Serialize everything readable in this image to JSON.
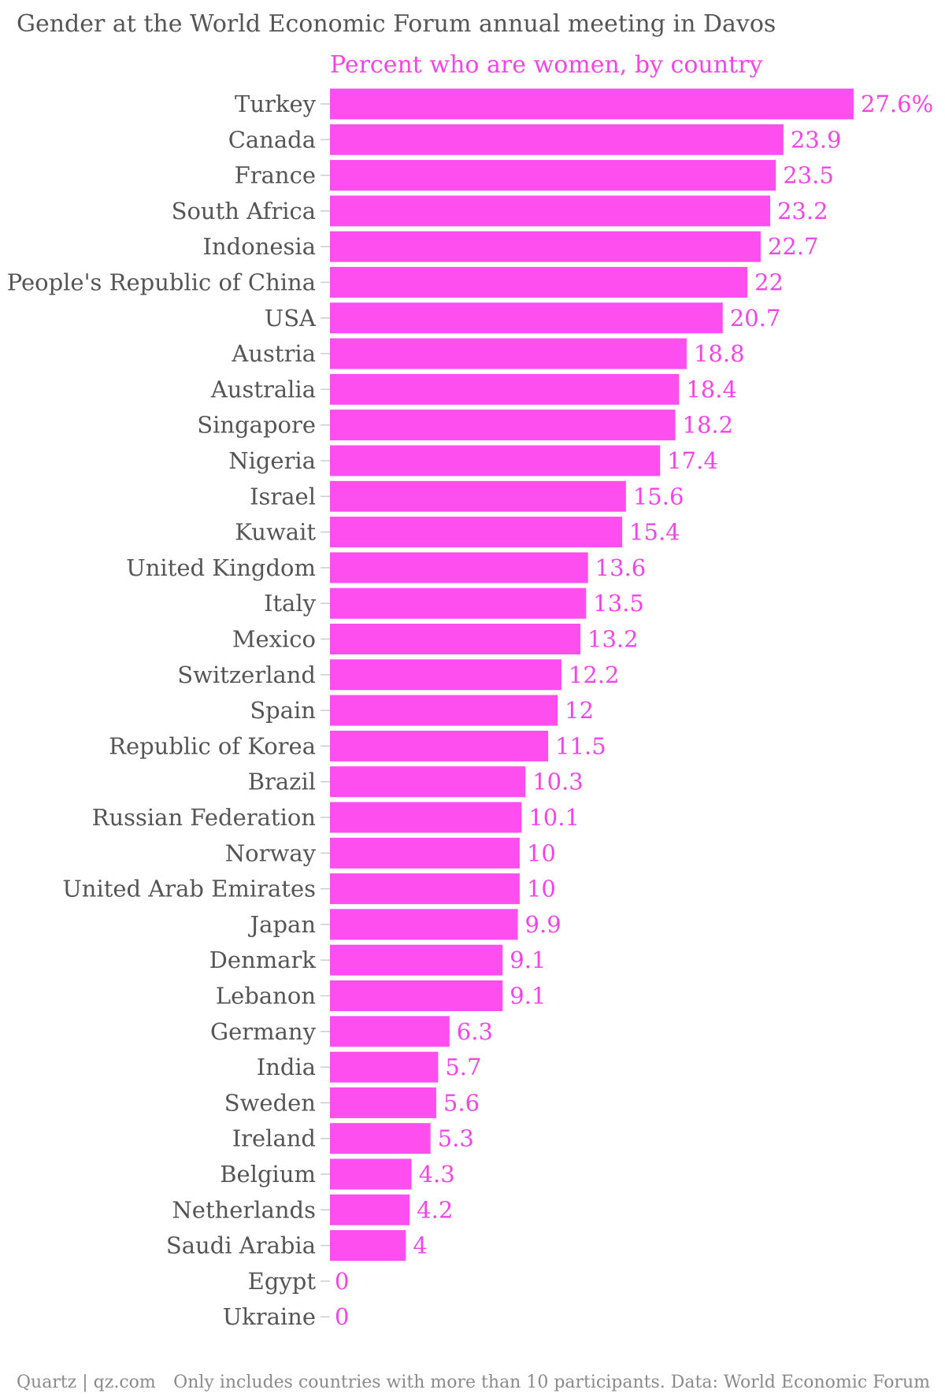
{
  "chart_data": {
    "type": "bar",
    "orientation": "horizontal",
    "title": "Gender at the World Economic Forum annual meeting in Davos",
    "subtitle": "Percent who are women, by country",
    "categories": [
      "Turkey",
      "Canada",
      "France",
      "South Africa",
      "Indonesia",
      "People's Republic of China",
      "USA",
      "Austria",
      "Australia",
      "Singapore",
      "Nigeria",
      "Israel",
      "Kuwait",
      "United Kingdom",
      "Italy",
      "Mexico",
      "Switzerland",
      "Spain",
      "Republic of Korea",
      "Brazil",
      "Russian Federation",
      "Norway",
      "United Arab Emirates",
      "Japan",
      "Denmark",
      "Lebanon",
      "Germany",
      "India",
      "Sweden",
      "Ireland",
      "Belgium",
      "Netherlands",
      "Saudi Arabia",
      "Egypt",
      "Ukraine"
    ],
    "values": [
      27.6,
      23.9,
      23.5,
      23.2,
      22.7,
      22,
      20.7,
      18.8,
      18.4,
      18.2,
      17.4,
      15.6,
      15.4,
      13.6,
      13.5,
      13.2,
      12.2,
      12,
      11.5,
      10.3,
      10.1,
      10,
      10,
      9.9,
      9.1,
      9.1,
      6.3,
      5.7,
      5.6,
      5.3,
      4.3,
      4.2,
      4,
      0,
      0
    ],
    "value_labels": [
      "27.6%",
      "23.9",
      "23.5",
      "23.2",
      "22.7",
      "22",
      "20.7",
      "18.8",
      "18.4",
      "18.2",
      "17.4",
      "15.6",
      "15.4",
      "13.6",
      "13.5",
      "13.2",
      "12.2",
      "12",
      "11.5",
      "10.3",
      "10.1",
      "10",
      "10",
      "9.9",
      "9.1",
      "9.1",
      "6.3",
      "5.7",
      "5.6",
      "5.3",
      "4.3",
      "4.2",
      "4",
      "0",
      "0"
    ],
    "xlim": [
      0,
      27.6
    ],
    "grid": false,
    "bar_color": "#ff4ef0",
    "label_color": "#f244e8",
    "text_color": "#555555"
  },
  "footer": {
    "source_left": "Quartz | qz.com",
    "note": "Only includes countries with more than 10 participants. Data: World Economic Forum"
  }
}
